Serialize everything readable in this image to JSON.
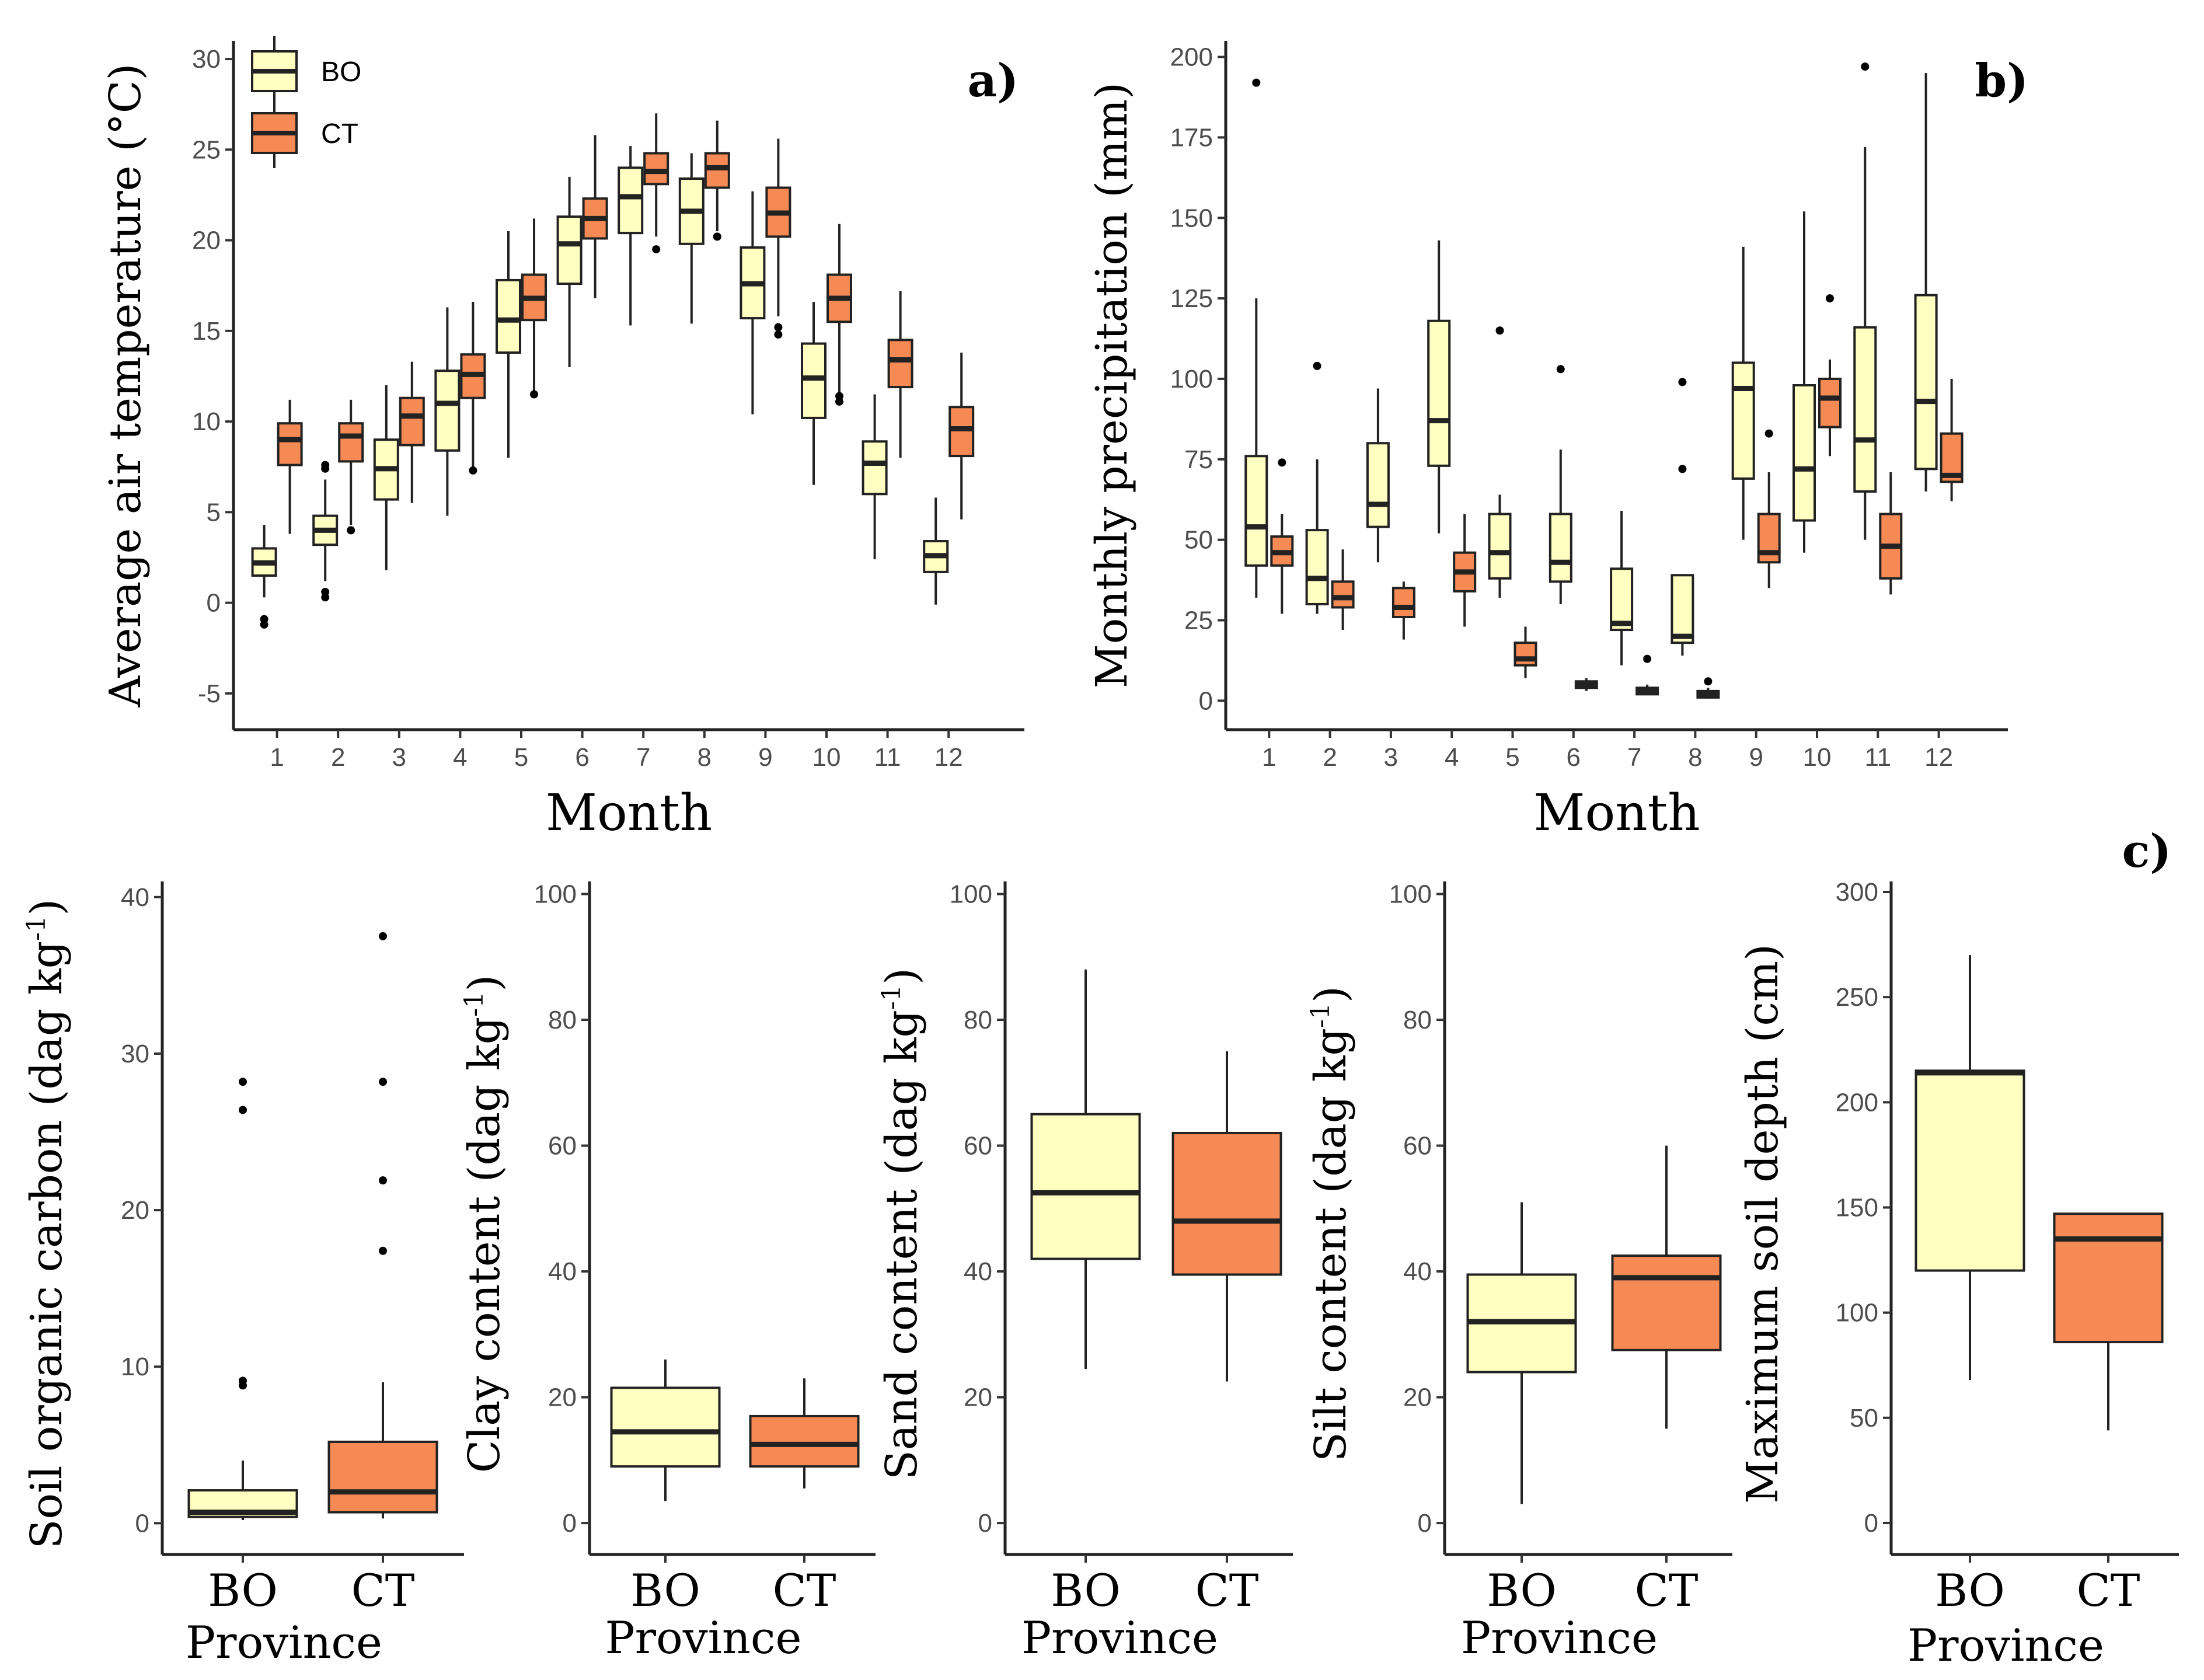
{
  "colors": {
    "BO": "#FFFFC1",
    "CT": "#F58A55",
    "line": "#222222"
  },
  "legend": [
    {
      "group": "BO"
    },
    {
      "group": "CT"
    }
  ],
  "chart_data": [
    {
      "id": "a",
      "type": "boxplot",
      "panel_label": "a)",
      "xlabel": "Month",
      "ylabel": "Average air temperature (°C)",
      "ylim": [
        -7,
        31
      ],
      "yticks": [
        -5,
        0,
        5,
        10,
        15,
        20,
        25,
        30
      ],
      "categories": [
        "1",
        "2",
        "3",
        "4",
        "5",
        "6",
        "7",
        "8",
        "9",
        "10",
        "11",
        "12"
      ],
      "series": [
        {
          "name": "BO",
          "boxes": [
            {
              "q1": 1.5,
              "median": 2.2,
              "q3": 3.0,
              "lo": 0.3,
              "hi": 4.3,
              "outliers": [
                -0.9,
                -1.2
              ]
            },
            {
              "q1": 3.2,
              "median": 4.0,
              "q3": 4.8,
              "lo": 1.2,
              "hi": 6.8,
              "outliers": [
                0.3,
                0.6,
                7.4,
                7.6
              ]
            },
            {
              "q1": 5.7,
              "median": 7.4,
              "q3": 9.0,
              "lo": 1.8,
              "hi": 12.0,
              "outliers": []
            },
            {
              "q1": 8.4,
              "median": 11.0,
              "q3": 12.8,
              "lo": 4.8,
              "hi": 16.3,
              "outliers": []
            },
            {
              "q1": 13.8,
              "median": 15.6,
              "q3": 17.8,
              "lo": 8.0,
              "hi": 20.5,
              "outliers": []
            },
            {
              "q1": 17.6,
              "median": 19.8,
              "q3": 21.3,
              "lo": 13.0,
              "hi": 23.5,
              "outliers": []
            },
            {
              "q1": 20.4,
              "median": 22.4,
              "q3": 24.0,
              "lo": 15.3,
              "hi": 25.2,
              "outliers": []
            },
            {
              "q1": 19.8,
              "median": 21.6,
              "q3": 23.4,
              "lo": 15.4,
              "hi": 24.8,
              "outliers": []
            },
            {
              "q1": 15.7,
              "median": 17.6,
              "q3": 19.6,
              "lo": 10.4,
              "hi": 22.7,
              "outliers": []
            },
            {
              "q1": 10.2,
              "median": 12.4,
              "q3": 14.3,
              "lo": 6.5,
              "hi": 16.6,
              "outliers": []
            },
            {
              "q1": 6.0,
              "median": 7.7,
              "q3": 8.9,
              "lo": 2.4,
              "hi": 11.5,
              "outliers": []
            },
            {
              "q1": 1.7,
              "median": 2.6,
              "q3": 3.4,
              "lo": -0.1,
              "hi": 5.8,
              "outliers": []
            }
          ]
        },
        {
          "name": "CT",
          "boxes": [
            {
              "q1": 7.6,
              "median": 9.0,
              "q3": 9.9,
              "lo": 3.8,
              "hi": 11.2,
              "outliers": []
            },
            {
              "q1": 7.8,
              "median": 9.2,
              "q3": 9.9,
              "lo": 4.3,
              "hi": 11.2,
              "outliers": [
                4.0
              ]
            },
            {
              "q1": 8.7,
              "median": 10.3,
              "q3": 11.3,
              "lo": 5.5,
              "hi": 13.3,
              "outliers": []
            },
            {
              "q1": 11.3,
              "median": 12.6,
              "q3": 13.7,
              "lo": 7.4,
              "hi": 16.6,
              "outliers": [
                7.3
              ]
            },
            {
              "q1": 15.6,
              "median": 16.8,
              "q3": 18.1,
              "lo": 11.5,
              "hi": 21.2,
              "outliers": [
                11.5
              ]
            },
            {
              "q1": 20.1,
              "median": 21.2,
              "q3": 22.3,
              "lo": 16.8,
              "hi": 25.8,
              "outliers": []
            },
            {
              "q1": 23.1,
              "median": 23.8,
              "q3": 24.8,
              "lo": 20.2,
              "hi": 27.0,
              "outliers": [
                19.5
              ]
            },
            {
              "q1": 22.9,
              "median": 24.0,
              "q3": 24.8,
              "lo": 20.5,
              "hi": 26.6,
              "outliers": [
                20.2
              ]
            },
            {
              "q1": 20.2,
              "median": 21.5,
              "q3": 22.9,
              "lo": 15.8,
              "hi": 25.6,
              "outliers": [
                14.8,
                15.2
              ]
            },
            {
              "q1": 15.5,
              "median": 16.8,
              "q3": 18.1,
              "lo": 11.4,
              "hi": 20.9,
              "outliers": [
                11.1,
                11.4
              ]
            },
            {
              "q1": 11.9,
              "median": 13.4,
              "q3": 14.5,
              "lo": 8.0,
              "hi": 17.2,
              "outliers": []
            },
            {
              "q1": 8.1,
              "median": 9.6,
              "q3": 10.8,
              "lo": 4.6,
              "hi": 13.8,
              "outliers": []
            }
          ]
        }
      ]
    },
    {
      "id": "b",
      "type": "boxplot",
      "panel_label": "b)",
      "xlabel": "Month",
      "ylabel": "Monthly precipitation (mm)",
      "ylim": [
        -9,
        205
      ],
      "yticks": [
        0,
        25,
        50,
        75,
        100,
        125,
        150,
        175,
        200
      ],
      "categories": [
        "1",
        "2",
        "3",
        "4",
        "5",
        "6",
        "7",
        "8",
        "9",
        "10",
        "11",
        "12"
      ],
      "series": [
        {
          "name": "BO",
          "boxes": [
            {
              "q1": 42,
              "median": 54,
              "q3": 76,
              "lo": 32,
              "hi": 125,
              "outliers": [
                192
              ]
            },
            {
              "q1": 30,
              "median": 38,
              "q3": 53,
              "lo": 27,
              "hi": 75,
              "outliers": [
                104
              ]
            },
            {
              "q1": 54,
              "median": 61,
              "q3": 80,
              "lo": 43,
              "hi": 97,
              "outliers": []
            },
            {
              "q1": 73,
              "median": 87,
              "q3": 118,
              "lo": 52,
              "hi": 143,
              "outliers": []
            },
            {
              "q1": 38,
              "median": 46,
              "q3": 58,
              "lo": 32,
              "hi": 64,
              "outliers": [
                115
              ]
            },
            {
              "q1": 37,
              "median": 43,
              "q3": 58,
              "lo": 30,
              "hi": 78,
              "outliers": [
                103
              ]
            },
            {
              "q1": 22,
              "median": 24,
              "q3": 41,
              "lo": 11,
              "hi": 59,
              "outliers": []
            },
            {
              "q1": 18,
              "median": 20,
              "q3": 39,
              "lo": 14,
              "hi": 39,
              "outliers": [
                72,
                99
              ]
            },
            {
              "q1": 69,
              "median": 97,
              "q3": 105,
              "lo": 50,
              "hi": 141,
              "outliers": []
            },
            {
              "q1": 56,
              "median": 72,
              "q3": 98,
              "lo": 46,
              "hi": 152,
              "outliers": []
            },
            {
              "q1": 65,
              "median": 81,
              "q3": 116,
              "lo": 50,
              "hi": 172,
              "outliers": [
                197
              ]
            },
            {
              "q1": 72,
              "median": 93,
              "q3": 126,
              "lo": 65,
              "hi": 195,
              "outliers": []
            }
          ]
        },
        {
          "name": "CT",
          "boxes": [
            {
              "q1": 42,
              "median": 46,
              "q3": 51,
              "lo": 27,
              "hi": 58,
              "outliers": [
                74
              ]
            },
            {
              "q1": 29,
              "median": 32,
              "q3": 37,
              "lo": 22,
              "hi": 47,
              "outliers": []
            },
            {
              "q1": 26,
              "median": 29,
              "q3": 35,
              "lo": 19,
              "hi": 37,
              "outliers": []
            },
            {
              "q1": 34,
              "median": 40,
              "q3": 46,
              "lo": 23,
              "hi": 58,
              "outliers": []
            },
            {
              "q1": 11,
              "median": 13,
              "q3": 18,
              "lo": 7,
              "hi": 23,
              "outliers": []
            },
            {
              "q1": 4,
              "median": 5,
              "q3": 6,
              "lo": 3,
              "hi": 7,
              "outliers": []
            },
            {
              "q1": 2,
              "median": 3,
              "q3": 4,
              "lo": 2,
              "hi": 5,
              "outliers": [
                13
              ]
            },
            {
              "q1": 1,
              "median": 2,
              "q3": 3,
              "lo": 1,
              "hi": 4,
              "outliers": [
                6
              ]
            },
            {
              "q1": 43,
              "median": 46,
              "q3": 58,
              "lo": 35,
              "hi": 71,
              "outliers": [
                83
              ]
            },
            {
              "q1": 85,
              "median": 94,
              "q3": 100,
              "lo": 76,
              "hi": 106,
              "outliers": [
                125
              ]
            },
            {
              "q1": 38,
              "median": 48,
              "q3": 58,
              "lo": 33,
              "hi": 71,
              "outliers": []
            },
            {
              "q1": 68,
              "median": 70,
              "q3": 83,
              "lo": 62,
              "hi": 100,
              "outliers": []
            }
          ]
        }
      ]
    },
    {
      "id": "c1",
      "type": "boxplot",
      "panel_label": "c)",
      "xlabel": "Province",
      "ylabel": "Soil organic carbon (dag kg",
      "ylabel_sup": "-1",
      "ylabel_tail": ")",
      "ylim": [
        -2,
        41
      ],
      "yticks": [
        0,
        10,
        20,
        30,
        40
      ],
      "categories": [
        "BO",
        "CT"
      ],
      "boxes": [
        {
          "group": "BO",
          "q1": 0.4,
          "median": 0.7,
          "q3": 2.1,
          "lo": 0.2,
          "hi": 4.0,
          "outliers": [
            8.8,
            9.1,
            26.4,
            28.2
          ]
        },
        {
          "group": "CT",
          "q1": 0.7,
          "median": 2.0,
          "q3": 5.2,
          "lo": 0.3,
          "hi": 9.0,
          "outliers": [
            17.4,
            21.9,
            28.2,
            37.5
          ]
        }
      ]
    },
    {
      "id": "c2",
      "type": "boxplot",
      "xlabel": "Province",
      "ylabel": "Clay content (dag kg",
      "ylabel_sup": "-1",
      "ylabel_tail": ")",
      "ylim": [
        -5,
        102
      ],
      "yticks": [
        0,
        20,
        40,
        60,
        80,
        100
      ],
      "categories": [
        "BO",
        "CT"
      ],
      "boxes": [
        {
          "group": "BO",
          "q1": 9,
          "median": 14.5,
          "q3": 21.5,
          "lo": 3.5,
          "hi": 26,
          "outliers": []
        },
        {
          "group": "CT",
          "q1": 9,
          "median": 12.5,
          "q3": 17,
          "lo": 5.5,
          "hi": 23,
          "outliers": []
        }
      ]
    },
    {
      "id": "c3",
      "type": "boxplot",
      "xlabel": "Province",
      "ylabel": "Sand content (dag kg",
      "ylabel_sup": "-1",
      "ylabel_tail": ")",
      "ylim": [
        -5,
        102
      ],
      "yticks": [
        0,
        20,
        40,
        60,
        80,
        100
      ],
      "categories": [
        "BO",
        "CT"
      ],
      "boxes": [
        {
          "group": "BO",
          "q1": 42,
          "median": 52.5,
          "q3": 65,
          "lo": 24.5,
          "hi": 88,
          "outliers": []
        },
        {
          "group": "CT",
          "q1": 39.5,
          "median": 48,
          "q3": 62,
          "lo": 22.5,
          "hi": 75,
          "outliers": []
        }
      ]
    },
    {
      "id": "c4",
      "type": "boxplot",
      "xlabel": "Province",
      "ylabel": "Silt content (dag kg",
      "ylabel_sup": "-1",
      "ylabel_tail": ")",
      "ylim": [
        -5,
        102
      ],
      "yticks": [
        0,
        20,
        40,
        60,
        80,
        100
      ],
      "categories": [
        "BO",
        "CT"
      ],
      "boxes": [
        {
          "group": "BO",
          "q1": 24,
          "median": 32,
          "q3": 39.5,
          "lo": 3,
          "hi": 51,
          "outliers": []
        },
        {
          "group": "CT",
          "q1": 27.5,
          "median": 39,
          "q3": 42.5,
          "lo": 15,
          "hi": 60,
          "outliers": []
        }
      ]
    },
    {
      "id": "c5",
      "type": "boxplot",
      "xlabel": "Province",
      "ylabel": "Maximum soil depth (cm)",
      "ylim": [
        -15,
        305
      ],
      "yticks": [
        0,
        50,
        100,
        150,
        200,
        250,
        300
      ],
      "categories": [
        "BO",
        "CT"
      ],
      "boxes": [
        {
          "group": "BO",
          "q1": 120,
          "median": 214,
          "q3": 215,
          "lo": 68,
          "hi": 270,
          "outliers": []
        },
        {
          "group": "CT",
          "q1": 86,
          "median": 135,
          "q3": 147,
          "lo": 44,
          "hi": 147,
          "outliers": []
        }
      ]
    }
  ]
}
